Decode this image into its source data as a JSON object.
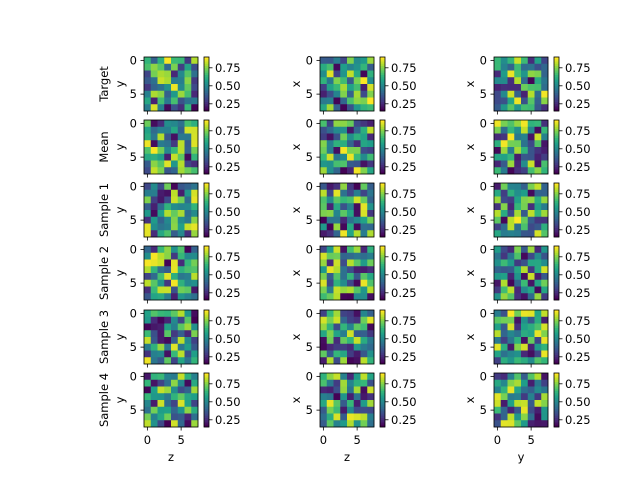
{
  "chart_data": {
    "type": "heatmap",
    "colormap": "viridis",
    "colormap_stops": [
      "#440154",
      "#482878",
      "#3e4989",
      "#31688e",
      "#26828e",
      "#1f9e89",
      "#35b779",
      "#6ece58",
      "#b5de2b",
      "#fde725"
    ],
    "value_range": [
      0.15,
      0.9
    ],
    "row_labels": [
      "Target",
      "Mean",
      "Sample 1",
      "Sample 2",
      "Sample 3",
      "Sample 4"
    ],
    "columns": [
      {
        "ylabel": "y",
        "xlabel": "z"
      },
      {
        "ylabel": "x",
        "xlabel": "z"
      },
      {
        "ylabel": "x",
        "xlabel": "y"
      }
    ],
    "axis_ticks": [
      "0",
      "5"
    ],
    "colorbar_ticks": [
      "0.75",
      "0.50",
      "0.25"
    ],
    "grid_size": [
      8,
      8
    ],
    "seed_note_hidden": ""
  }
}
